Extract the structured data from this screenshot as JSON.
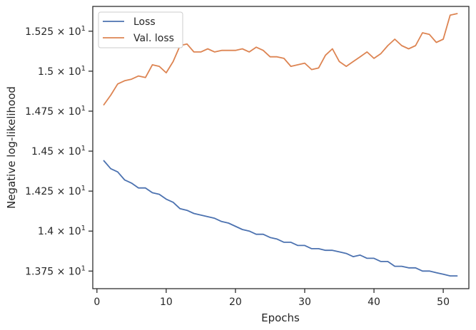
{
  "chart_data": {
    "type": "line",
    "xlabel": "Epochs",
    "ylabel": "Negative log-likelihood",
    "xlim": [
      -0.6,
      53.7
    ],
    "ylim": [
      13.64,
      15.405
    ],
    "x_ticks": [
      0,
      10,
      20,
      30,
      40,
      50
    ],
    "y_ticks": [
      {
        "value": 13.75,
        "mantissa": "1.375",
        "base": "10",
        "exp": "1"
      },
      {
        "value": 14.0,
        "mantissa": "1.4",
        "base": "10",
        "exp": "1"
      },
      {
        "value": 14.25,
        "mantissa": "1.425",
        "base": "10",
        "exp": "1"
      },
      {
        "value": 14.5,
        "mantissa": "1.45",
        "base": "10",
        "exp": "1"
      },
      {
        "value": 14.75,
        "mantissa": "1.475",
        "base": "10",
        "exp": "1"
      },
      {
        "value": 15.0,
        "mantissa": "1.5",
        "base": "10",
        "exp": "1"
      },
      {
        "value": 15.25,
        "mantissa": "1.525",
        "base": "10",
        "exp": "1"
      }
    ],
    "legend_position": "top-left",
    "grid": false,
    "series": [
      {
        "name": "Loss",
        "color": "#4c72b0",
        "x": [
          1,
          2,
          3,
          4,
          5,
          6,
          7,
          8,
          9,
          10,
          11,
          12,
          13,
          14,
          15,
          16,
          17,
          18,
          19,
          20,
          21,
          22,
          23,
          24,
          25,
          26,
          27,
          28,
          29,
          30,
          31,
          32,
          33,
          34,
          35,
          36,
          37,
          38,
          39,
          40,
          41,
          42,
          43,
          44,
          45,
          46,
          47,
          48,
          49,
          50,
          51,
          52
        ],
        "y": [
          14.44,
          14.39,
          14.37,
          14.32,
          14.3,
          14.27,
          14.27,
          14.24,
          14.23,
          14.2,
          14.18,
          14.14,
          14.13,
          14.11,
          14.1,
          14.09,
          14.08,
          14.06,
          14.05,
          14.03,
          14.01,
          14.0,
          13.98,
          13.98,
          13.96,
          13.95,
          13.93,
          13.93,
          13.91,
          13.91,
          13.89,
          13.89,
          13.88,
          13.88,
          13.87,
          13.86,
          13.84,
          13.85,
          13.83,
          13.83,
          13.81,
          13.81,
          13.78,
          13.78,
          13.77,
          13.77,
          13.75,
          13.75,
          13.74,
          13.73,
          13.72,
          13.72
        ]
      },
      {
        "name": "Val. loss",
        "color": "#dd8452",
        "x": [
          1,
          2,
          3,
          4,
          5,
          6,
          7,
          8,
          9,
          10,
          11,
          12,
          13,
          14,
          15,
          16,
          17,
          18,
          19,
          20,
          21,
          22,
          23,
          24,
          25,
          26,
          27,
          28,
          29,
          30,
          31,
          32,
          33,
          34,
          35,
          36,
          37,
          38,
          39,
          40,
          41,
          42,
          43,
          44,
          45,
          46,
          47,
          48,
          49,
          50,
          51,
          52
        ],
        "y": [
          14.79,
          14.85,
          14.92,
          14.94,
          14.95,
          14.97,
          14.96,
          15.04,
          15.03,
          14.99,
          15.06,
          15.16,
          15.17,
          15.12,
          15.12,
          15.14,
          15.12,
          15.13,
          15.13,
          15.13,
          15.14,
          15.12,
          15.15,
          15.13,
          15.09,
          15.09,
          15.08,
          15.03,
          15.04,
          15.05,
          15.01,
          15.02,
          15.1,
          15.14,
          15.06,
          15.03,
          15.06,
          15.09,
          15.12,
          15.08,
          15.11,
          15.16,
          15.2,
          15.16,
          15.14,
          15.16,
          15.24,
          15.23,
          15.18,
          15.2,
          15.35,
          15.36
        ]
      }
    ]
  }
}
